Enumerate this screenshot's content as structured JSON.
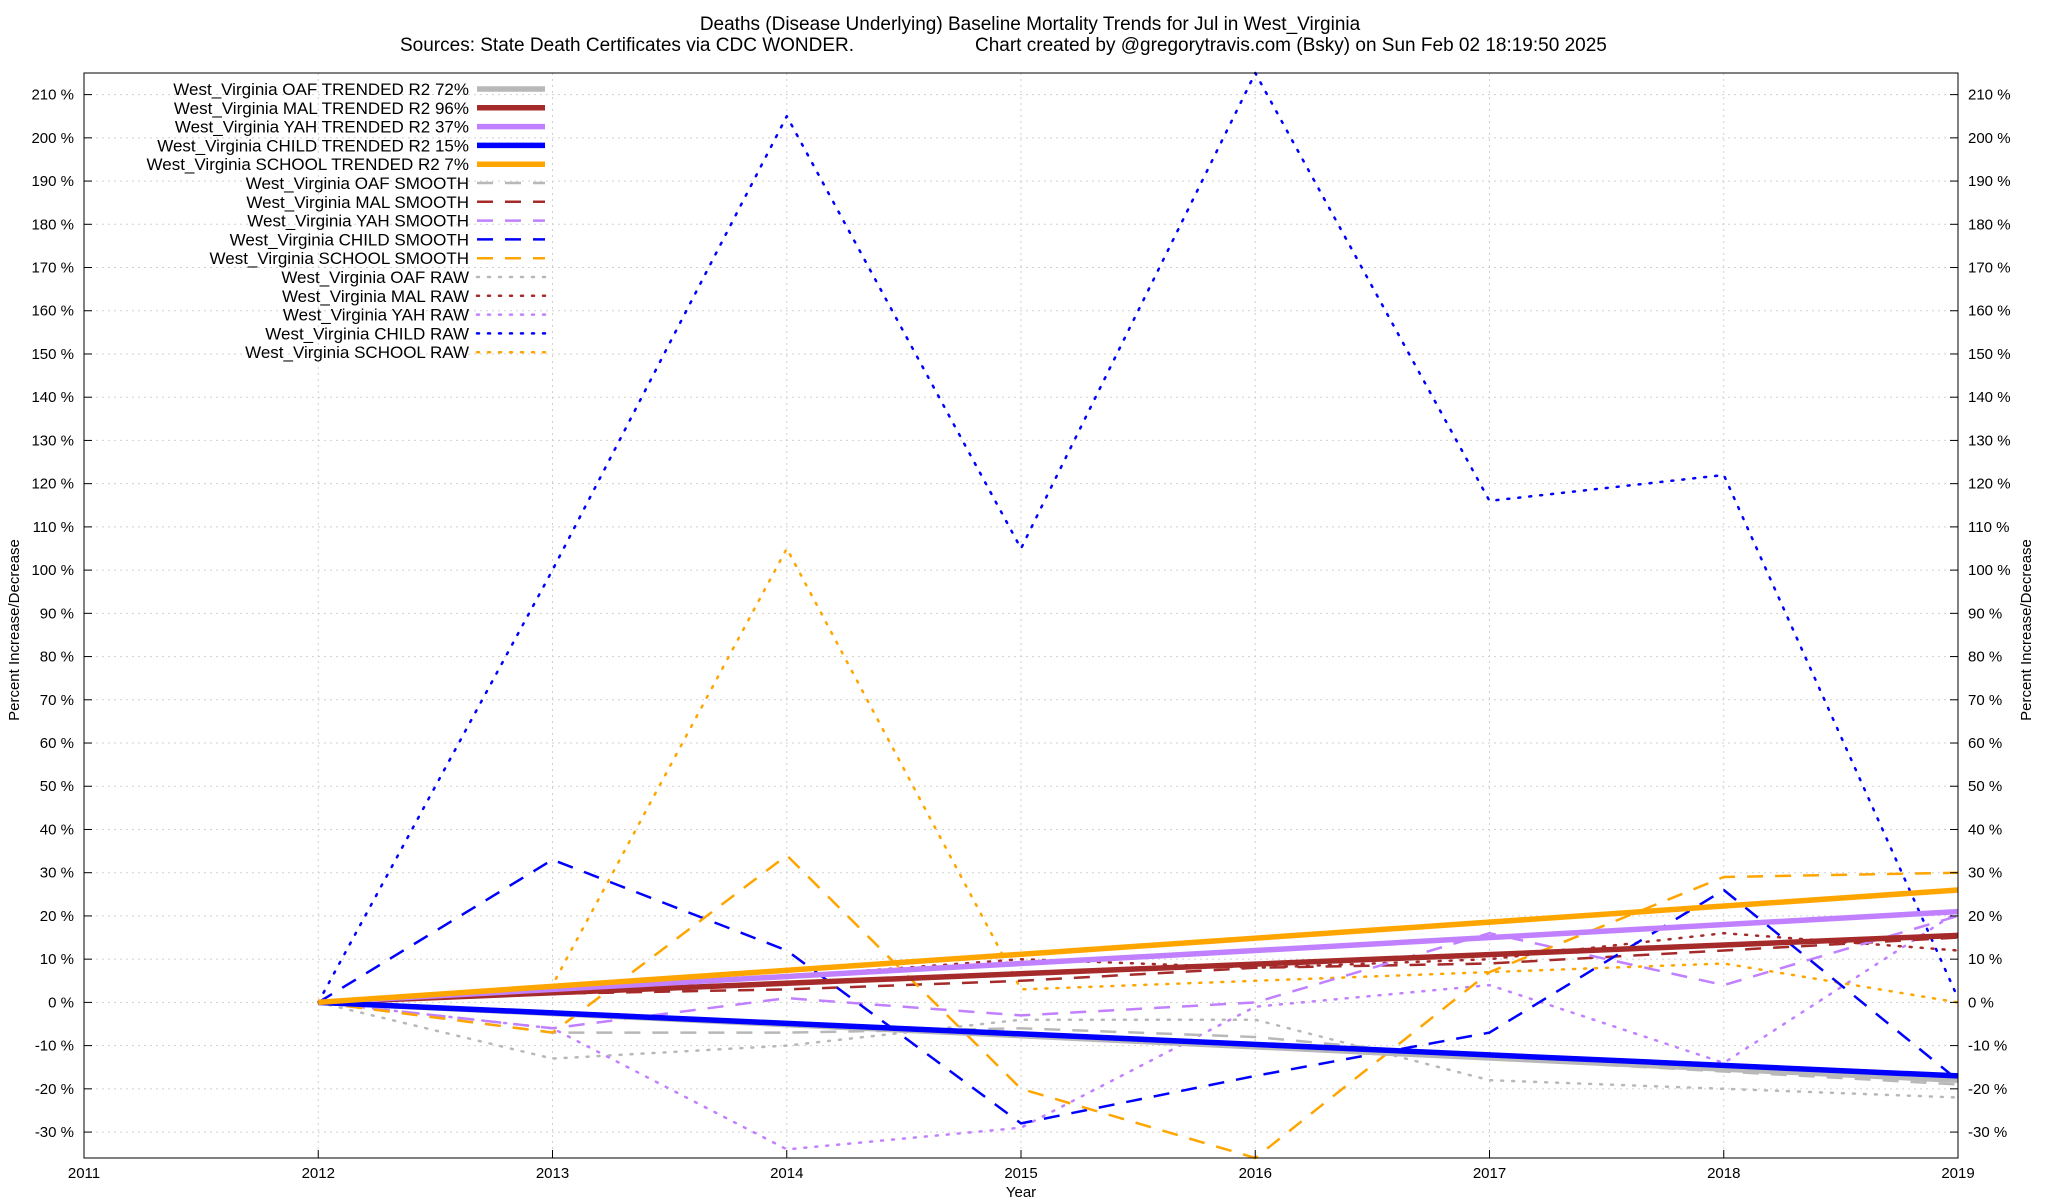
{
  "chart_data": {
    "type": "line",
    "title": "Deaths (Disease Underlying)  Baseline Mortality Trends for Jul in West_Virginia",
    "subtitle_left": "Sources: State Death Certificates via CDC WONDER.",
    "subtitle_right": "Chart created by @gregorytravis.com (Bsky) on Sun Feb 02 18:19:50 2025",
    "xlabel": "Year",
    "ylabel": "Percent Increase/Decrease",
    "ylabel_right": "Percent Increase/Decrease",
    "xlim": [
      2011,
      2019
    ],
    "ylim": [
      -36,
      215
    ],
    "x_ticks": [
      "2011",
      "2012",
      "2013",
      "2014",
      "2015",
      "2016",
      "2017",
      "2018",
      "2019"
    ],
    "y_ticks": [
      "-30 %",
      "-20 %",
      "-10 %",
      "0 %",
      "10 %",
      "20 %",
      "30 %",
      "40 %",
      "50 %",
      "60 %",
      "70 %",
      "80 %",
      "90 %",
      "100 %",
      "110 %",
      "120 %",
      "130 %",
      "140 %",
      "150 %",
      "160 %",
      "170 %",
      "180 %",
      "190 %",
      "200 %",
      "210 %"
    ],
    "grid": true,
    "legend_position": "top-left",
    "series": [
      {
        "name": "West_Virginia OAF TRENDED R2  72%",
        "color": "#b8b8b8",
        "style": "trend",
        "x": [
          2012,
          2019
        ],
        "values": [
          0,
          -18
        ]
      },
      {
        "name": "West_Virginia MAL TRENDED R2  96%",
        "color": "#a52a2a",
        "style": "trend",
        "x": [
          2012,
          2019
        ],
        "values": [
          0,
          15.5
        ]
      },
      {
        "name": "West_Virginia YAH TRENDED R2  37%",
        "color": "#c080ff",
        "style": "trend",
        "x": [
          2012,
          2019
        ],
        "values": [
          0,
          21
        ]
      },
      {
        "name": "West_Virginia CHILD TRENDED R2  15%",
        "color": "#0000ff",
        "style": "trend",
        "x": [
          2012,
          2019
        ],
        "values": [
          0,
          -17
        ]
      },
      {
        "name": "West_Virginia SCHOOL TRENDED R2   7%",
        "color": "#ffa500",
        "style": "trend",
        "x": [
          2012,
          2019
        ],
        "values": [
          0,
          26
        ]
      },
      {
        "name": "West_Virginia OAF SMOOTH",
        "color": "#b8b8b8",
        "style": "smooth",
        "x": [
          2012,
          2013,
          2014,
          2015,
          2016,
          2017,
          2018,
          2019
        ],
        "values": [
          0,
          -7,
          -7,
          -6,
          -8,
          -13,
          -16,
          -19
        ]
      },
      {
        "name": "West_Virginia MAL SMOOTH",
        "color": "#a52a2a",
        "style": "smooth",
        "x": [
          2012,
          2013,
          2014,
          2015,
          2016,
          2017,
          2018,
          2019
        ],
        "values": [
          0,
          2,
          3,
          5,
          8,
          9,
          12,
          15
        ]
      },
      {
        "name": "West_Virginia YAH SMOOTH",
        "color": "#c080ff",
        "style": "smooth",
        "x": [
          2012,
          2013,
          2014,
          2015,
          2016,
          2017,
          2018,
          2019
        ],
        "values": [
          0,
          -6,
          1,
          -3,
          0,
          16,
          4,
          20
        ]
      },
      {
        "name": "West_Virginia CHILD SMOOTH",
        "color": "#0000ff",
        "style": "smooth",
        "x": [
          2012,
          2013,
          2014,
          2015,
          2016,
          2017,
          2018,
          2019
        ],
        "values": [
          0,
          33,
          12,
          -28,
          -17,
          -7,
          26,
          -18
        ]
      },
      {
        "name": "West_Virginia SCHOOL SMOOTH",
        "color": "#ffa500",
        "style": "smooth",
        "x": [
          2012,
          2013,
          2014,
          2015,
          2016,
          2017,
          2018,
          2019
        ],
        "values": [
          0,
          -7,
          34,
          -20,
          -36,
          7,
          29,
          30
        ]
      },
      {
        "name": "West_Virginia OAF RAW",
        "color": "#b8b8b8",
        "style": "raw",
        "x": [
          2012,
          2013,
          2014,
          2015,
          2016,
          2017,
          2018,
          2019
        ],
        "values": [
          0,
          -13,
          -10,
          -4,
          -4,
          -18,
          -20,
          -22
        ]
      },
      {
        "name": "West_Virginia MAL RAW",
        "color": "#a52a2a",
        "style": "raw",
        "x": [
          2012,
          2013,
          2014,
          2015,
          2016,
          2017,
          2018,
          2019
        ],
        "values": [
          0,
          3,
          6,
          10,
          8,
          10,
          16,
          12
        ]
      },
      {
        "name": "West_Virginia YAH RAW",
        "color": "#c080ff",
        "style": "raw",
        "x": [
          2012,
          2013,
          2014,
          2015,
          2016,
          2017,
          2018,
          2019
        ],
        "values": [
          0,
          -6,
          -34,
          -29,
          -1,
          4,
          -14,
          21
        ]
      },
      {
        "name": "West_Virginia CHILD RAW",
        "color": "#0000ff",
        "style": "raw",
        "x": [
          2012,
          2013,
          2014,
          2015,
          2016,
          2017,
          2018,
          2019
        ],
        "values": [
          0,
          100,
          205,
          105,
          215,
          116,
          122,
          1
        ]
      },
      {
        "name": "West_Virginia SCHOOL RAW",
        "color": "#ffa500",
        "style": "raw",
        "x": [
          2012,
          2013,
          2014,
          2015,
          2016,
          2017,
          2018,
          2019
        ],
        "values": [
          0,
          4,
          105,
          3,
          5,
          7,
          9,
          0
        ]
      }
    ]
  }
}
